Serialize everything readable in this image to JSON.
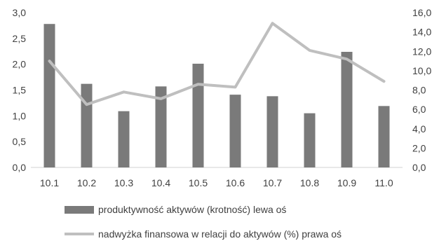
{
  "chart_data": {
    "type": "bar",
    "categories": [
      "10.1",
      "10.2",
      "10.3",
      "10.4",
      "10.5",
      "10.6",
      "10.7",
      "10.8",
      "10.9",
      "11.0"
    ],
    "series": [
      {
        "name": "produktywność aktywów (krotność) lewa oś",
        "type": "bar",
        "axis": "left",
        "color": "#7a7a7a",
        "values": [
          2.78,
          1.62,
          1.09,
          1.57,
          2.01,
          1.41,
          1.38,
          1.05,
          2.24,
          1.19
        ]
      },
      {
        "name": "nadwyżka finansowa w relacji do aktywów (%) prawa oś",
        "type": "line",
        "axis": "right",
        "color": "#bfbfbf",
        "values": [
          11.0,
          6.5,
          7.8,
          7.1,
          8.6,
          8.3,
          14.9,
          12.1,
          11.2,
          8.9
        ]
      }
    ],
    "y_left": {
      "min": 0,
      "max": 3,
      "ticks": [
        "0,0",
        "0,5",
        "1,0",
        "1,5",
        "2,0",
        "2,5",
        "3,0"
      ]
    },
    "y_right": {
      "min": 0,
      "max": 16,
      "ticks": [
        "0,0",
        "2,0",
        "4,0",
        "6,0",
        "8,0",
        "10,0",
        "12,0",
        "14,0",
        "16,0"
      ]
    },
    "grid": false,
    "legend_position": "bottom",
    "title": "",
    "xlabel": "",
    "ylabel": ""
  }
}
